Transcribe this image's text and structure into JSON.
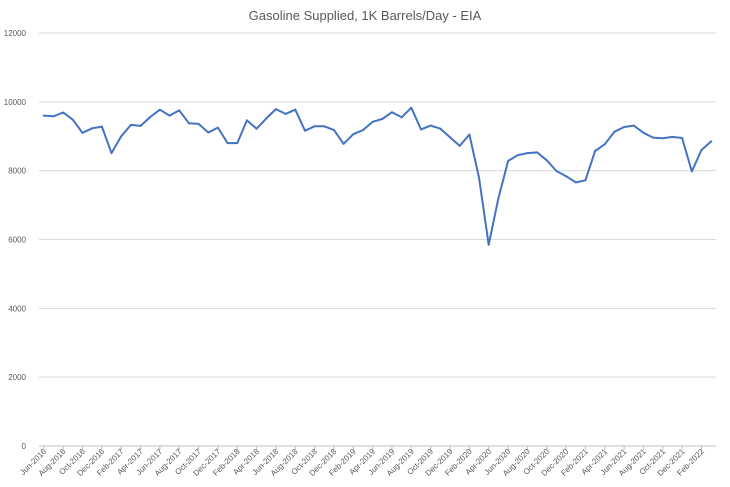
{
  "chart_data": {
    "type": "line",
    "title": "Gasoline Supplied, 1K Barrels/Day - EIA",
    "xlabel": "",
    "ylabel": "",
    "ylim": [
      0,
      12000
    ],
    "yticks": [
      0,
      2000,
      4000,
      6000,
      8000,
      10000,
      12000
    ],
    "grid": true,
    "legend": "none",
    "line_color": "#4472c4",
    "x": [
      "Jun-2016",
      "Jul-2016",
      "Aug-2016",
      "Sep-2016",
      "Oct-2016",
      "Nov-2016",
      "Dec-2016",
      "Jan-2017",
      "Feb-2017",
      "Mar-2017",
      "Apr-2017",
      "May-2017",
      "Jun-2017",
      "Jul-2017",
      "Aug-2017",
      "Sep-2017",
      "Oct-2017",
      "Nov-2017",
      "Dec-2017",
      "Jan-2018",
      "Feb-2018",
      "Mar-2018",
      "Apr-2018",
      "May-2018",
      "Jun-2018",
      "Jul-2018",
      "Aug-2018",
      "Sep-2018",
      "Oct-2018",
      "Nov-2018",
      "Dec-2018",
      "Jan-2019",
      "Feb-2019",
      "Mar-2019",
      "Apr-2019",
      "May-2019",
      "Jun-2019",
      "Jul-2019",
      "Aug-2019",
      "Sep-2019",
      "Oct-2019",
      "Nov-2019",
      "Dec-2019",
      "Jan-2020",
      "Feb-2020",
      "Mar-2020",
      "Apr-2020",
      "May-2020",
      "Jun-2020",
      "Jul-2020",
      "Aug-2020",
      "Sep-2020",
      "Oct-2020",
      "Nov-2020",
      "Dec-2020",
      "Jan-2021",
      "Feb-2021",
      "Mar-2021",
      "Apr-2021",
      "May-2021",
      "Jun-2021",
      "Jul-2021",
      "Aug-2021",
      "Sep-2021",
      "Oct-2021",
      "Nov-2021",
      "Dec-2021",
      "Jan-2022",
      "Feb-2022",
      "Mar-2022"
    ],
    "xtick_labels": [
      "Jun-2016",
      "Aug-2016",
      "Oct-2016",
      "Dec-2016",
      "Feb-2017",
      "Apr-2017",
      "Jun-2017",
      "Aug-2017",
      "Oct-2017",
      "Dec-2017",
      "Feb-2018",
      "Apr-2018",
      "Jun-2018",
      "Aug-2018",
      "Oct-2018",
      "Dec-2018",
      "Feb-2019",
      "Apr-2019",
      "Jun-2019",
      "Aug-2019",
      "Oct-2019",
      "Dec-2019",
      "Feb-2020",
      "Apr-2020",
      "Jun-2020",
      "Aug-2020",
      "Oct-2020",
      "Dec-2020",
      "Feb-2021",
      "Apr-2021",
      "Jun-2021",
      "Aug-2021",
      "Oct-2021",
      "Dec-2021",
      "Feb-2022"
    ],
    "series": [
      {
        "values": [
          9600,
          9580,
          9690,
          9480,
          9100,
          9230,
          9280,
          8510,
          9000,
          9330,
          9300,
          9560,
          9770,
          9600,
          9750,
          9380,
          9360,
          9110,
          9250,
          8800,
          8800,
          9460,
          9220,
          9520,
          9790,
          9650,
          9770,
          9160,
          9290,
          9290,
          9180,
          8780,
          9060,
          9180,
          9420,
          9500,
          9700,
          9550,
          9830,
          9200,
          9310,
          9220,
          8970,
          8720,
          9050,
          7800,
          5850,
          7200,
          8280,
          8450,
          8510,
          8530,
          8300,
          7990,
          7840,
          7660,
          7720,
          8570,
          8770,
          9130,
          9270,
          9310,
          9100,
          8960,
          8940,
          8980,
          8950,
          7980,
          8600,
          8850
        ]
      }
    ]
  }
}
